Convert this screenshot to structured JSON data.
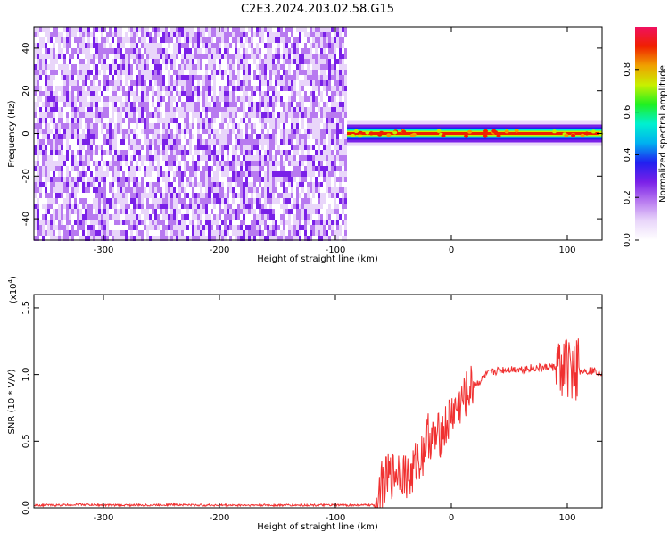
{
  "title": "C2E3.2024.203.02.58.G15",
  "chart_data": [
    {
      "type": "heatmap",
      "xlabel": "Height of straight line (km)",
      "ylabel": "Frequency (Hz)",
      "xlim": [
        -360,
        130
      ],
      "ylim": [
        -50,
        50
      ],
      "x_ticks": [
        -300,
        -200,
        -100,
        0,
        100
      ],
      "y_ticks": [
        -40,
        -20,
        0,
        20,
        40
      ],
      "colorbar": {
        "label": "Normalized spectral amplitude",
        "range": [
          0,
          1
        ],
        "ticks": [
          "0.0",
          "0.2",
          "0.4",
          "0.6",
          "0.8"
        ],
        "tick_values": [
          0.0,
          0.2,
          0.4,
          0.6,
          0.8
        ],
        "colors": [
          "#ffffff",
          "#e9d6fa",
          "#b87af0",
          "#7a20e8",
          "#2020f0",
          "#00b0f0",
          "#00f0d0",
          "#20f020",
          "#c8f000",
          "#f0a000",
          "#f02000",
          "#f01060"
        ]
      },
      "regions": [
        {
          "name": "noise",
          "x_range": [
            -360,
            -90
          ],
          "description_level": 0.25
        },
        {
          "name": "carrier",
          "x_range": [
            -90,
            130
          ],
          "frequency": 0,
          "peak_level": 0.95
        }
      ]
    },
    {
      "type": "line",
      "xlabel": "Height of straight line (km)",
      "ylabel": "SNR (10 * V/V)",
      "scale_label": "(x10",
      "scale_exp": "4",
      "scale_close": ")",
      "xlim": [
        -360,
        130
      ],
      "ylim": [
        0,
        1.6
      ],
      "x_ticks": [
        -300,
        -200,
        -100,
        0,
        100
      ],
      "y_ticks": [
        "0.0",
        "0.5",
        "1.0",
        "1.5"
      ],
      "y_tick_values": [
        0.0,
        0.5,
        1.0,
        1.5
      ],
      "color": "#f03030",
      "series": [
        {
          "x": [
            -360,
            -340,
            -320,
            -300,
            -280,
            -260,
            -240,
            -220,
            -200,
            -180,
            -160,
            -140,
            -120,
            -100,
            -80,
            -66,
            -60,
            -55,
            -50,
            -45,
            -40,
            -35,
            -30,
            -25,
            -20,
            -15,
            -10,
            -5,
            0,
            5,
            10,
            15,
            20,
            25,
            30,
            40,
            50,
            60,
            70,
            80,
            85,
            90,
            95,
            100,
            105,
            110,
            120,
            130
          ],
          "y": [
            0.02,
            0.02,
            0.025,
            0.02,
            0.02,
            0.02,
            0.025,
            0.02,
            0.02,
            0.02,
            0.02,
            0.02,
            0.02,
            0.02,
            0.02,
            0.02,
            0.18,
            0.22,
            0.25,
            0.3,
            0.25,
            0.22,
            0.35,
            0.4,
            0.55,
            0.5,
            0.55,
            0.6,
            0.7,
            0.75,
            0.8,
            0.88,
            0.92,
            0.95,
            1.0,
            1.03,
            1.04,
            1.04,
            1.05,
            1.05,
            1.06,
            1.05,
            1.05,
            1.04,
            1.04,
            1.03,
            1.03,
            1.02
          ]
        }
      ]
    }
  ]
}
